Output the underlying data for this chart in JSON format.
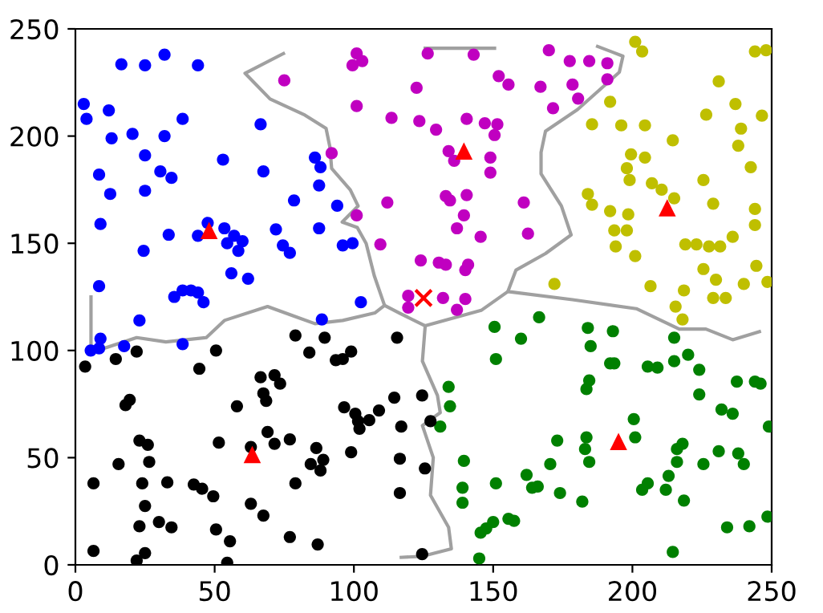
{
  "chart_data": {
    "type": "scatter",
    "xlim": [
      0,
      250
    ],
    "ylim": [
      0,
      250
    ],
    "xticks": [
      0,
      50,
      100,
      150,
      200,
      250
    ],
    "yticks": [
      0,
      50,
      100,
      150,
      200,
      250
    ],
    "grid": false,
    "legend": false,
    "series": [
      {
        "type": "line",
        "color": "#a0a0a0",
        "marker": "none",
        "x": [
          74.7,
          60.9,
          69.9,
          82.4,
          90,
          91.4,
          92,
          98.7,
          101.5,
          95.8,
          101.2,
          104.4,
          107.3,
          111
        ],
        "values": [
          238.5,
          229.3,
          217.3,
          209.8,
          203.6,
          194.8,
          184.9,
          174.9,
          167.4,
          159.9,
          157.4,
          149.9,
          134.9,
          121
        ]
      },
      {
        "type": "line",
        "color": "#a0a0a0",
        "marker": "none",
        "x": [
          5.6,
          5.6,
          22,
          32.5,
          47,
          53.5,
          69,
          78.5,
          86,
          96,
          107.5,
          111,
          117,
          125.6,
          145.7,
          155.3
        ],
        "values": [
          125,
          99,
          106,
          104,
          106,
          114,
          120.5,
          116,
          112.5,
          114,
          117.5,
          121,
          117,
          111.5,
          118.7,
          127.5
        ]
      },
      {
        "type": "line",
        "color": "#a0a0a0",
        "marker": "none",
        "x": [
          125.6,
          124.6,
          130,
          131,
          124.6,
          128.5,
          127.5,
          134,
          135,
          124.6,
          117
        ],
        "values": [
          111.5,
          95,
          79,
          71,
          65,
          50,
          32.5,
          17.5,
          7.5,
          4,
          3.5
        ]
      },
      {
        "type": "line",
        "color": "#a0a0a0",
        "marker": "none",
        "x": [
          187.5,
          196.6,
          195.3,
          180.3,
          168.8,
          167.2,
          167.2,
          174.5,
          178,
          168.8,
          158.2,
          155.3,
          178.5,
          201.4,
          216.8,
          226.4,
          236,
          245.6
        ],
        "values": [
          241.8,
          237.3,
          229.8,
          212.4,
          202.3,
          192.4,
          182.4,
          167.4,
          153.9,
          145.2,
          137.5,
          127.5,
          123.7,
          119.5,
          110,
          110,
          105,
          108.8
        ]
      },
      {
        "type": "line",
        "color": "#a0a0a0",
        "marker": "none",
        "x": [
          125.6,
          150.5
        ],
        "values": [
          241,
          241
        ]
      },
      {
        "color": "#0000ff",
        "marker": "circle",
        "x": [
          16.5,
          25,
          32,
          44,
          3,
          4,
          12,
          13,
          20.5,
          32,
          38.5,
          25,
          8.5,
          30.5,
          34.5,
          53,
          66.5,
          67.5,
          86,
          88,
          87.5,
          78.5,
          94,
          12.5,
          25,
          9,
          33.5,
          44,
          47.5,
          53.5,
          57,
          54.5,
          60,
          58.5,
          72,
          74.5,
          77,
          87.5,
          96,
          99.5,
          24.5,
          56,
          62,
          8.5,
          35.5,
          38.5,
          41.5,
          44,
          46,
          102.5,
          23,
          38.5,
          88.5,
          9,
          5.5,
          8.5,
          17.5
        ],
        "values": [
          233.5,
          233,
          238,
          233,
          215,
          208,
          212,
          199,
          201,
          200,
          208,
          191,
          182,
          183.5,
          180.5,
          189,
          205.5,
          183.5,
          190,
          185.5,
          177,
          170,
          167.5,
          173,
          174.5,
          159,
          154,
          153.5,
          159.5,
          157,
          153.5,
          150,
          151,
          146.5,
          156.5,
          149,
          145.5,
          157,
          149,
          150,
          146.5,
          136,
          133.5,
          130,
          125,
          128,
          128,
          127,
          122.5,
          122.5,
          114,
          103,
          114.5,
          105.5,
          100,
          101,
          102
        ]
      },
      {
        "color": "#c000c0",
        "marker": "circle",
        "x": [
          101,
          103,
          99.5,
          75,
          101,
          113.5,
          92,
          112,
          101,
          109.5,
          119.5,
          119.5,
          126.5,
          143,
          170,
          177.5,
          184.5,
          191,
          191,
          122.5,
          152,
          155.5,
          167,
          178.5,
          180.5,
          171.5,
          123.5,
          129.5,
          140.5,
          147,
          151.5,
          150.5,
          134,
          136,
          149,
          149,
          133,
          134.5,
          140.5,
          139.5,
          161,
          137,
          145.5,
          162.5,
          124,
          130.5,
          133,
          141,
          140,
          132,
          140,
          137
        ],
        "values": [
          238.5,
          235,
          233,
          226,
          214,
          208.5,
          192,
          169,
          163,
          149.5,
          125.5,
          120,
          238.5,
          238,
          240,
          235,
          235,
          234,
          226.5,
          222.5,
          228,
          224,
          223,
          224,
          217.5,
          213,
          207,
          203,
          208,
          206,
          205.5,
          200.5,
          193,
          188.5,
          190,
          183,
          172,
          170,
          172.5,
          163,
          169,
          157,
          153,
          154.5,
          142,
          141,
          140,
          140,
          137.5,
          124.5,
          124,
          119
        ]
      },
      {
        "color": "#bfbf00",
        "marker": "circle",
        "x": [
          201,
          203.5,
          244,
          248,
          231,
          192,
          237,
          226.5,
          246.5,
          185.5,
          196,
          204.5,
          239,
          214.5,
          238,
          199.5,
          204.5,
          198,
          242.5,
          199,
          225.5,
          207,
          210.5,
          215,
          184,
          185.5,
          229,
          192,
          198.5,
          244,
          193.5,
          198,
          244,
          236,
          219,
          223,
          227.5,
          231.5,
          194,
          201,
          244.5,
          225.5,
          172,
          206.5,
          218.5,
          240,
          230,
          248.5,
          229,
          233.5,
          215.5,
          218
        ],
        "values": [
          244,
          239.5,
          239.5,
          240,
          225.5,
          216,
          215,
          210,
          209.5,
          205.5,
          205,
          205,
          203.5,
          198,
          195.5,
          191.5,
          190,
          185,
          185.5,
          179.5,
          179.5,
          178,
          175,
          171,
          173,
          168,
          168.5,
          165,
          163.5,
          166,
          156,
          156,
          158.5,
          153,
          149.5,
          149.5,
          148.5,
          148.5,
          148.5,
          144,
          139.5,
          138,
          131,
          130,
          128,
          131,
          133,
          132,
          124.5,
          124.5,
          120.5,
          114.5
        ]
      },
      {
        "color": "#008000",
        "marker": "circle",
        "x": [
          150.5,
          166.5,
          184,
          193,
          160,
          185,
          151,
          192,
          193.5,
          215,
          215,
          220,
          205.5,
          209,
          224,
          184.5,
          183.5,
          237.5,
          244,
          246,
          134,
          134.5,
          224,
          232,
          236,
          131,
          200.5,
          201,
          249,
          173,
          183.5,
          183,
          184.5,
          218,
          216,
          216,
          231,
          238,
          240,
          225.5,
          139.5,
          170.5,
          162,
          213,
          205.5,
          203.5,
          212,
          151,
          166,
          164,
          139,
          139,
          174,
          182,
          218.5,
          155.5,
          157.5,
          150,
          147.5,
          145.5,
          145,
          234,
          242,
          248.5,
          214.5
        ],
        "values": [
          111,
          115.5,
          110.5,
          109,
          105.5,
          102,
          96,
          94,
          94,
          106,
          95,
          98,
          92.5,
          92,
          91,
          86,
          82,
          85.5,
          85.5,
          84.5,
          83,
          74,
          79.5,
          72.5,
          70.5,
          64.5,
          68,
          59.5,
          64.5,
          58,
          59.5,
          54,
          48,
          56.5,
          54,
          48,
          53,
          52,
          47,
          47,
          48.5,
          47,
          42,
          41.5,
          38,
          35,
          35,
          38,
          36.5,
          36,
          36,
          29,
          33.5,
          29.5,
          30,
          21.5,
          20.5,
          20,
          17,
          15,
          3,
          17.5,
          18,
          22.5,
          6
        ]
      },
      {
        "color": "#000000",
        "marker": "circle",
        "x": [
          3.5,
          14.5,
          22,
          44.5,
          50.5,
          79,
          89.5,
          84,
          93.5,
          96,
          99,
          115.5,
          66.5,
          71.5,
          73.5,
          67.5,
          68.5,
          19.5,
          18,
          58,
          96.5,
          100.5,
          101.5,
          102,
          105.5,
          109,
          114.5,
          117,
          69,
          71.5,
          77,
          63,
          51.5,
          23,
          26,
          26.5,
          15.5,
          86.5,
          99,
          89,
          84.5,
          88,
          116.5,
          6.5,
          24,
          33,
          42.5,
          45.5,
          49.5,
          79,
          116.5,
          25,
          63,
          67.5,
          23,
          30,
          34.5,
          50.5,
          55.5,
          77,
          87,
          6.5,
          25,
          22,
          54.5,
          124.5,
          127.5,
          125.5,
          124.5
        ],
        "values": [
          92.5,
          96,
          99.5,
          91.5,
          100,
          107,
          106,
          99,
          95.5,
          96,
          99.5,
          106,
          87.5,
          88.5,
          84.5,
          80,
          76.5,
          77,
          74.5,
          74,
          73.5,
          70.5,
          67,
          63.5,
          67.5,
          72,
          78,
          64.5,
          62,
          56.5,
          58.5,
          55,
          57,
          58,
          56,
          48,
          47,
          54.5,
          52.5,
          49,
          47,
          44,
          49.5,
          38,
          38,
          38.5,
          37.5,
          35.5,
          32,
          38,
          33.5,
          27.5,
          28.5,
          23,
          18,
          20,
          17.5,
          16.5,
          11,
          13,
          9.5,
          6.5,
          5.5,
          2,
          1,
          79,
          67,
          45,
          5
        ]
      },
      {
        "color": "#ff0000",
        "marker": "triangle",
        "x": [
          48,
          139.5,
          212.5,
          63.5,
          195
        ],
        "values": [
          156,
          193,
          166.5,
          51.5,
          57.5
        ]
      },
      {
        "color": "#ff0000",
        "marker": "cross",
        "x": [
          125
        ],
        "values": [
          124.5
        ]
      }
    ]
  }
}
